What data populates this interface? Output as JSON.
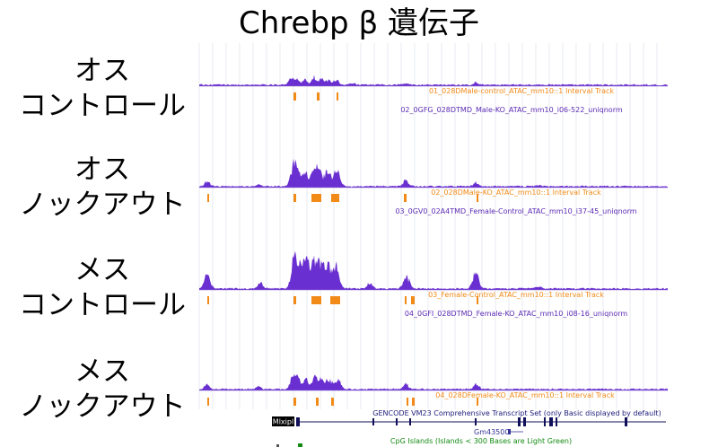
{
  "title": "Chrebp β 遺伝子",
  "colors": {
    "signal": "#6a2fd0",
    "interval": "#f28a17",
    "gene": "#10105a",
    "grid": "#d8dde6",
    "gencode_label": "#1c1c7a",
    "cpg_label": "#138a13"
  },
  "groups": [
    {
      "line1": "オス",
      "line2": "コントロール",
      "interval_label": "01_028DMale-control_ATAC_mm10::1 Interval Track",
      "signal_label": "02_0GFG_028DTMD_Male-KO_ATAC_mm10_i06-522_uniqnorm",
      "peaks": [
        [
          325,
          10
        ],
        [
          331,
          6
        ],
        [
          340,
          7
        ],
        [
          350,
          10
        ],
        [
          358,
          8
        ],
        [
          366,
          6
        ],
        [
          375,
          8
        ],
        [
          393,
          2
        ],
        [
          452,
          2
        ],
        [
          530,
          3
        ]
      ],
      "intervals": [
        [
          327,
          3
        ],
        [
          353,
          3
        ],
        [
          375,
          2
        ]
      ]
    },
    {
      "line1": "オス",
      "line2": "ノックアウト",
      "interval_label": "02_028DMale-KO_ATAC_mm10::1 Interval Track",
      "signal_label": "03_0GV0_02A4TMD_Female-Control_ATAC_mm10_i37-45_uniqnorm",
      "peaks": [
        [
          231,
          7
        ],
        [
          288,
          2
        ],
        [
          327,
          24
        ],
        [
          332,
          15
        ],
        [
          340,
          18
        ],
        [
          350,
          22
        ],
        [
          356,
          16
        ],
        [
          365,
          19
        ],
        [
          375,
          23
        ],
        [
          452,
          8
        ],
        [
          530,
          6
        ],
        [
          600,
          2
        ]
      ],
      "intervals": [
        [
          231,
          2
        ],
        [
          327,
          3
        ],
        [
          347,
          11
        ],
        [
          369,
          9
        ],
        [
          450,
          3
        ],
        [
          531,
          2
        ]
      ]
    },
    {
      "line1": "メス",
      "line2": "コントロール",
      "interval_label": "03_Female-Control_ATAC_mm10::1 Interval Track",
      "signal_label": "04_0GFI_028DTMD_Female-KO_ATAC_mm10_i08-16_uniqnorm",
      "peaks": [
        [
          231,
          18
        ],
        [
          290,
          8
        ],
        [
          328,
          40
        ],
        [
          336,
          28
        ],
        [
          343,
          32
        ],
        [
          351,
          35
        ],
        [
          358,
          28
        ],
        [
          366,
          30
        ],
        [
          375,
          32
        ],
        [
          412,
          8
        ],
        [
          453,
          16
        ],
        [
          530,
          20
        ],
        [
          600,
          3
        ]
      ],
      "intervals": [
        [
          231,
          2
        ],
        [
          327,
          3
        ],
        [
          347,
          11
        ],
        [
          368,
          11
        ],
        [
          451,
          2
        ],
        [
          458,
          4
        ],
        [
          531,
          2
        ]
      ]
    },
    {
      "line1": "メス",
      "line2": "ノックアウト",
      "interval_label": "04_028DFemale-KO_ATAC_mm10::1 Interval Track",
      "signal_label": "",
      "peaks": [
        [
          231,
          6
        ],
        [
          288,
          3
        ],
        [
          327,
          18
        ],
        [
          333,
          10
        ],
        [
          341,
          12
        ],
        [
          351,
          15
        ],
        [
          358,
          11
        ],
        [
          366,
          13
        ],
        [
          376,
          14
        ],
        [
          452,
          8
        ],
        [
          531,
          8
        ]
      ],
      "intervals": [
        [
          231,
          2
        ],
        [
          327,
          3
        ],
        [
          352,
          3
        ],
        [
          369,
          3
        ],
        [
          453,
          2
        ],
        [
          459,
          3
        ],
        [
          531,
          2
        ]
      ]
    }
  ],
  "gencode": {
    "gene_label": "Mlxipl",
    "track_label": "GENCODE VM23 Comprehensive Transcript Set (only Basic displayed by default)",
    "second_gene_label": "Gm43500"
  },
  "cpg": {
    "track_label": "CpG Islands (Islands < 300 Bases are Light Green)"
  }
}
